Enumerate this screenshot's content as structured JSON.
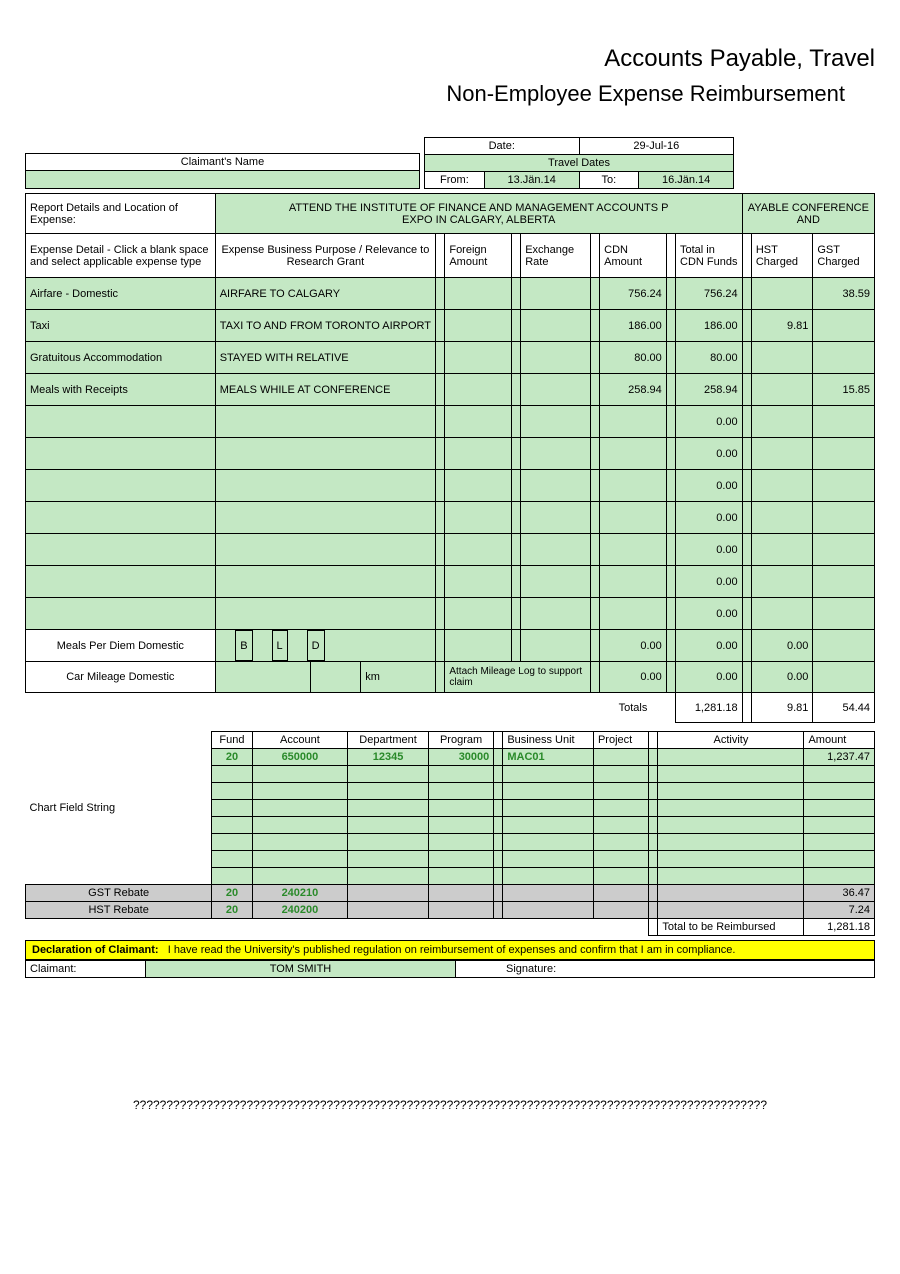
{
  "title1": "Accounts Payable, Travel",
  "title2": "Non-Employee Expense Reimbursement",
  "header": {
    "claimant_label": "Claimant's Name",
    "claimant_value": "",
    "date_label": "Date:",
    "date_value": "29-Jul-16",
    "travel_dates_label": "Travel Dates",
    "from_label": "From:",
    "from_value": "13.Jän.14",
    "to_label": "To:",
    "to_value": "16.Jän.14"
  },
  "report_details_label": "Report Details and Location of Expense:",
  "report_details_1": "ATTEND THE INSTITUTE OF FINANCE AND MANAGEMENT ACCOUNTS P",
  "report_details_2": "AYABLE CONFERENCE AND",
  "report_details_3": "EXPO IN CALGARY, ALBERTA",
  "cols": {
    "exp_detail": "Expense Detail - Click a blank space and select applicable expense type",
    "purpose": "Expense Business Purpose / Relevance to Research Grant",
    "foreign": "Foreign Amount",
    "rate": "Exchange Rate",
    "cdn": "CDN Amount",
    "total": "Total in CDN Funds",
    "hst": "HST Charged",
    "gst": "GST Charged"
  },
  "rows": [
    {
      "d": "Airfare - Domestic",
      "p": "AIRFARE TO CALGARY",
      "fa": "",
      "er": "",
      "cdn": "756.24",
      "tot": "756.24",
      "hst": "",
      "gst": "38.59"
    },
    {
      "d": "Taxi",
      "p": "TAXI TO AND FROM TORONTO AIRPORT",
      "fa": "",
      "er": "",
      "cdn": "186.00",
      "tot": "186.00",
      "hst": "9.81",
      "gst": ""
    },
    {
      "d": "Gratuitous Accommodation",
      "p": "STAYED WITH RELATIVE",
      "fa": "",
      "er": "",
      "cdn": "80.00",
      "tot": "80.00",
      "hst": "",
      "gst": ""
    },
    {
      "d": "Meals with Receipts",
      "p": " MEALS WHILE AT CONFERENCE",
      "fa": "",
      "er": "",
      "cdn": "258.94",
      "tot": "258.94",
      "hst": "",
      "gst": "15.85"
    },
    {
      "d": "",
      "p": "",
      "fa": "",
      "er": "",
      "cdn": "",
      "tot": "0.00",
      "hst": "",
      "gst": ""
    },
    {
      "d": "",
      "p": "",
      "fa": "",
      "er": "",
      "cdn": "",
      "tot": "0.00",
      "hst": "",
      "gst": ""
    },
    {
      "d": "",
      "p": "",
      "fa": "",
      "er": "",
      "cdn": "",
      "tot": "0.00",
      "hst": "",
      "gst": ""
    },
    {
      "d": "",
      "p": "",
      "fa": "",
      "er": "",
      "cdn": "",
      "tot": "0.00",
      "hst": "",
      "gst": ""
    },
    {
      "d": "",
      "p": "",
      "fa": "",
      "er": "",
      "cdn": "",
      "tot": "0.00",
      "hst": "",
      "gst": ""
    },
    {
      "d": "",
      "p": "",
      "fa": "",
      "er": "",
      "cdn": "",
      "tot": "0.00",
      "hst": "",
      "gst": ""
    },
    {
      "d": "",
      "p": "",
      "fa": "",
      "er": "",
      "cdn": "",
      "tot": "0.00",
      "hst": "",
      "gst": ""
    }
  ],
  "meals_label": "Meals Per Diem Domestic",
  "meals_b": "B",
  "meals_l": "L",
  "meals_d": "D",
  "meals_cdn": "0.00",
  "meals_tot": "0.00",
  "meals_hst": "0.00",
  "car_label": "Car Mileage Domestic",
  "car_km": "km",
  "car_note": "Attach Mileage Log to support claim",
  "car_cdn": "0.00",
  "car_tot": "0.00",
  "car_hst": "0.00",
  "totals_label": "Totals",
  "totals_tot": "1,281.18",
  "totals_hst": "9.81",
  "totals_gst": "54.44",
  "cf": {
    "label": "Chart Field String",
    "cols": {
      "fund": "Fund",
      "account": "Account",
      "dept": "Department",
      "prog": "Program",
      "bu": "Business Unit",
      "proj": "Project",
      "act": "Activity",
      "amt": "Amount"
    },
    "row1": {
      "fund": "20",
      "account": "650000",
      "dept": "12345",
      "prog": "30000",
      "bu": "MAC01",
      "proj": "",
      "act": "",
      "amt": "1,237.47"
    },
    "gst_label": "GST Rebate",
    "gst": {
      "fund": "20",
      "account": "240210",
      "amt": "36.47"
    },
    "hst_label": "HST Rebate",
    "hst": {
      "fund": "20",
      "account": "240200",
      "amt": "7.24"
    },
    "total_label": "Total to be Reimbursed",
    "total_amt": "1,281.18"
  },
  "decl_label": "Declaration of Claimant:",
  "decl_text": "I have read the University's published regulation on reimbursement of expenses and confirm that I am in compliance.",
  "sig_claimant_label": "Claimant:",
  "sig_claimant_value": "TOM SMITH",
  "sig_label": "Signature:",
  "footer": "???????????????????????????????????????????????????????????????????????????????????????????????"
}
